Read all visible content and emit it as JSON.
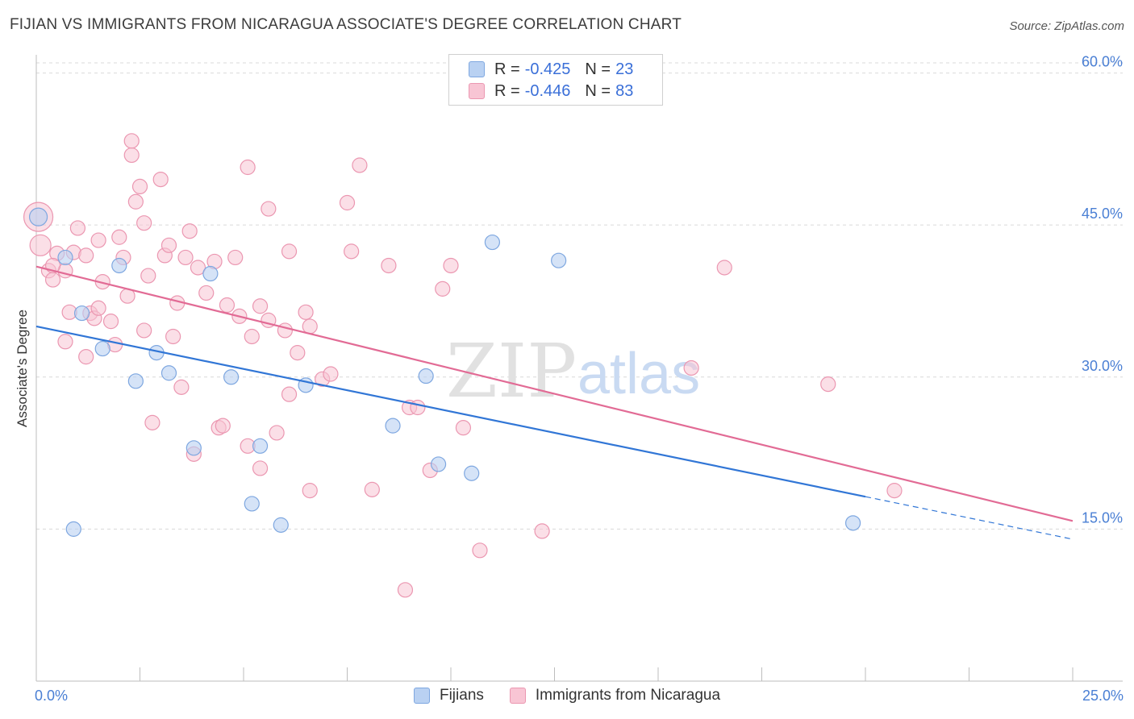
{
  "title": "FIJIAN VS IMMIGRANTS FROM NICARAGUA ASSOCIATE'S DEGREE CORRELATION CHART",
  "source": "Source: ZipAtlas.com",
  "watermark": {
    "zip": "ZIP",
    "atlas": "atlas"
  },
  "colors": {
    "fijian_fill": "#b9d1f2",
    "fijian_stroke": "#7ea7e0",
    "fijian_line": "#3176d6",
    "nic_fill": "#f8c5d4",
    "nic_stroke": "#eb97b1",
    "nic_line": "#e26b95",
    "grid": "#d9d9d9",
    "tick_label": "#4a7fd4"
  },
  "legend": {
    "rows": [
      {
        "r_label": "R =",
        "r_value": "-0.425",
        "n_label": "N =",
        "n_value": "23"
      },
      {
        "r_label": "R =",
        "r_value": "-0.446",
        "n_label": "N =",
        "n_value": "83"
      }
    ]
  },
  "bottom_legend": [
    "Fijians",
    "Immigrants from Nicaragua"
  ],
  "chart_data": {
    "type": "scatter",
    "title": "FIJIAN VS IMMIGRANTS FROM NICARAGUA ASSOCIATE'S DEGREE CORRELATION CHART",
    "xlabel": "",
    "ylabel": "Associate's Degree",
    "xlim": [
      0,
      25
    ],
    "ylim": [
      0,
      61
    ],
    "x_tick_labels": [
      "0.0%",
      "25.0%"
    ],
    "y_ticks": [
      15,
      30,
      45,
      60
    ],
    "y_tick_labels": [
      "15.0%",
      "30.0%",
      "45.0%",
      "60.0%"
    ],
    "grid": true,
    "series": [
      {
        "name": "Fijians",
        "r": -0.425,
        "n": 23,
        "trend": {
          "x0": 0,
          "y0": 35.0,
          "x1": 20,
          "y1": 18.2,
          "dash_to_x": 25,
          "dash_to_y": 14.0
        },
        "points": [
          [
            0.05,
            45.8
          ],
          [
            0.7,
            41.8
          ],
          [
            2.0,
            41.0
          ],
          [
            4.2,
            40.2
          ],
          [
            1.1,
            36.3
          ],
          [
            1.6,
            32.8
          ],
          [
            2.9,
            32.4
          ],
          [
            3.2,
            30.4
          ],
          [
            2.4,
            29.6
          ],
          [
            4.7,
            30.0
          ],
          [
            6.5,
            29.2
          ],
          [
            9.4,
            30.1
          ],
          [
            3.8,
            23.0
          ],
          [
            5.4,
            23.2
          ],
          [
            8.6,
            25.2
          ],
          [
            9.7,
            21.4
          ],
          [
            10.5,
            20.5
          ],
          [
            5.2,
            17.5
          ],
          [
            5.9,
            15.4
          ],
          [
            11.0,
            43.3
          ],
          [
            12.6,
            41.5
          ],
          [
            19.7,
            15.6
          ],
          [
            0.9,
            15.0
          ]
        ]
      },
      {
        "name": "Immigrants from Nicaragua",
        "r": -0.446,
        "n": 83,
        "trend": {
          "x0": 0,
          "y0": 40.9,
          "x1": 25,
          "y1": 15.8
        },
        "points": [
          [
            0.05,
            45.8
          ],
          [
            0.1,
            43.0
          ],
          [
            0.3,
            40.5
          ],
          [
            0.4,
            39.6
          ],
          [
            0.5,
            42.2
          ],
          [
            0.7,
            40.5
          ],
          [
            0.8,
            36.4
          ],
          [
            1.0,
            44.7
          ],
          [
            0.9,
            42.3
          ],
          [
            1.2,
            42.0
          ],
          [
            1.3,
            36.3
          ],
          [
            1.4,
            35.8
          ],
          [
            1.5,
            36.8
          ],
          [
            1.6,
            39.4
          ],
          [
            1.8,
            35.5
          ],
          [
            1.9,
            33.2
          ],
          [
            2.0,
            43.8
          ],
          [
            2.1,
            41.8
          ],
          [
            2.3,
            51.9
          ],
          [
            2.3,
            53.3
          ],
          [
            2.4,
            47.3
          ],
          [
            2.5,
            48.8
          ],
          [
            2.6,
            45.2
          ],
          [
            2.7,
            40.0
          ],
          [
            2.6,
            34.6
          ],
          [
            3.0,
            49.5
          ],
          [
            3.1,
            42.0
          ],
          [
            3.2,
            43.0
          ],
          [
            3.3,
            34.0
          ],
          [
            3.4,
            37.3
          ],
          [
            3.6,
            41.8
          ],
          [
            3.7,
            44.4
          ],
          [
            3.9,
            40.8
          ],
          [
            4.1,
            38.3
          ],
          [
            4.3,
            41.4
          ],
          [
            4.6,
            37.1
          ],
          [
            4.8,
            41.8
          ],
          [
            4.9,
            36.0
          ],
          [
            5.1,
            50.7
          ],
          [
            5.2,
            34.0
          ],
          [
            5.4,
            37.0
          ],
          [
            5.6,
            35.6
          ],
          [
            5.6,
            46.6
          ],
          [
            6.0,
            34.6
          ],
          [
            6.1,
            42.4
          ],
          [
            6.3,
            32.4
          ],
          [
            6.5,
            36.4
          ],
          [
            6.6,
            35.0
          ],
          [
            6.9,
            29.8
          ],
          [
            7.1,
            30.3
          ],
          [
            7.5,
            47.2
          ],
          [
            7.6,
            42.4
          ],
          [
            7.8,
            50.9
          ],
          [
            8.5,
            41.0
          ],
          [
            9.0,
            27.0
          ],
          [
            9.8,
            38.7
          ],
          [
            10.0,
            41.0
          ],
          [
            10.3,
            25.0
          ],
          [
            0.7,
            33.5
          ],
          [
            1.2,
            32.0
          ],
          [
            2.8,
            25.5
          ],
          [
            3.5,
            29.0
          ],
          [
            3.8,
            22.4
          ],
          [
            4.4,
            25.0
          ],
          [
            4.5,
            25.2
          ],
          [
            5.1,
            23.2
          ],
          [
            5.4,
            21.0
          ],
          [
            5.8,
            24.5
          ],
          [
            6.1,
            28.3
          ],
          [
            6.6,
            18.8
          ],
          [
            8.1,
            18.9
          ],
          [
            8.9,
            9.0
          ],
          [
            9.2,
            27.0
          ],
          [
            9.5,
            20.8
          ],
          [
            10.7,
            12.9
          ],
          [
            12.2,
            14.8
          ],
          [
            15.8,
            30.9
          ],
          [
            16.6,
            40.8
          ],
          [
            19.1,
            29.3
          ],
          [
            20.7,
            18.8
          ],
          [
            0.4,
            41.0
          ],
          [
            1.5,
            43.5
          ],
          [
            2.2,
            38.0
          ]
        ]
      }
    ]
  }
}
